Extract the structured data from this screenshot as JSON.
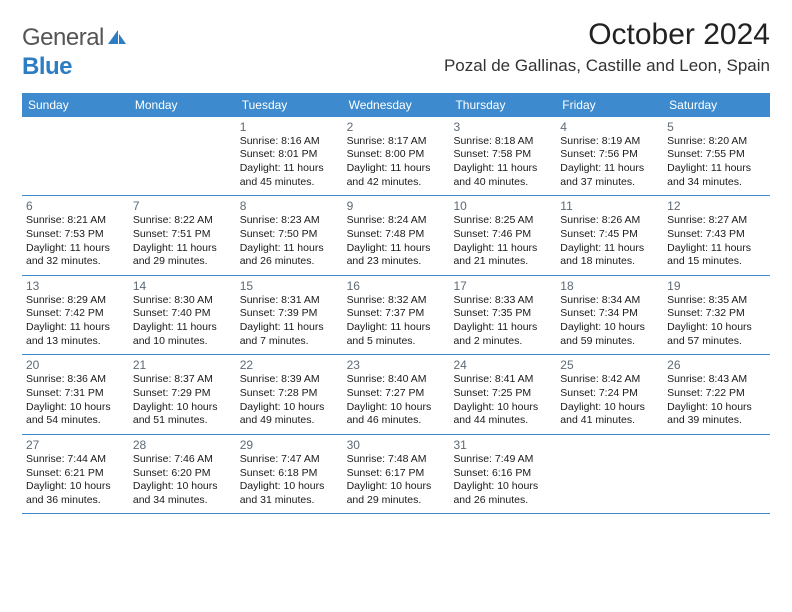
{
  "logo": {
    "part1": "General",
    "part2": "Blue"
  },
  "title": "October 2024",
  "location": "Pozal de Gallinas, Castille and Leon, Spain",
  "colors": {
    "header_bg": "#3d8bce",
    "header_text": "#ffffff",
    "border": "#3d8bce",
    "daynum": "#5d6a75",
    "logo_gray": "#555555",
    "logo_blue": "#2d7dc4"
  },
  "weekdays": [
    "Sunday",
    "Monday",
    "Tuesday",
    "Wednesday",
    "Thursday",
    "Friday",
    "Saturday"
  ],
  "weeks": [
    [
      null,
      null,
      {
        "n": "1",
        "sr": "8:16 AM",
        "ss": "8:01 PM",
        "dl": "11 hours and 45 minutes."
      },
      {
        "n": "2",
        "sr": "8:17 AM",
        "ss": "8:00 PM",
        "dl": "11 hours and 42 minutes."
      },
      {
        "n": "3",
        "sr": "8:18 AM",
        "ss": "7:58 PM",
        "dl": "11 hours and 40 minutes."
      },
      {
        "n": "4",
        "sr": "8:19 AM",
        "ss": "7:56 PM",
        "dl": "11 hours and 37 minutes."
      },
      {
        "n": "5",
        "sr": "8:20 AM",
        "ss": "7:55 PM",
        "dl": "11 hours and 34 minutes."
      }
    ],
    [
      {
        "n": "6",
        "sr": "8:21 AM",
        "ss": "7:53 PM",
        "dl": "11 hours and 32 minutes."
      },
      {
        "n": "7",
        "sr": "8:22 AM",
        "ss": "7:51 PM",
        "dl": "11 hours and 29 minutes."
      },
      {
        "n": "8",
        "sr": "8:23 AM",
        "ss": "7:50 PM",
        "dl": "11 hours and 26 minutes."
      },
      {
        "n": "9",
        "sr": "8:24 AM",
        "ss": "7:48 PM",
        "dl": "11 hours and 23 minutes."
      },
      {
        "n": "10",
        "sr": "8:25 AM",
        "ss": "7:46 PM",
        "dl": "11 hours and 21 minutes."
      },
      {
        "n": "11",
        "sr": "8:26 AM",
        "ss": "7:45 PM",
        "dl": "11 hours and 18 minutes."
      },
      {
        "n": "12",
        "sr": "8:27 AM",
        "ss": "7:43 PM",
        "dl": "11 hours and 15 minutes."
      }
    ],
    [
      {
        "n": "13",
        "sr": "8:29 AM",
        "ss": "7:42 PM",
        "dl": "11 hours and 13 minutes."
      },
      {
        "n": "14",
        "sr": "8:30 AM",
        "ss": "7:40 PM",
        "dl": "11 hours and 10 minutes."
      },
      {
        "n": "15",
        "sr": "8:31 AM",
        "ss": "7:39 PM",
        "dl": "11 hours and 7 minutes."
      },
      {
        "n": "16",
        "sr": "8:32 AM",
        "ss": "7:37 PM",
        "dl": "11 hours and 5 minutes."
      },
      {
        "n": "17",
        "sr": "8:33 AM",
        "ss": "7:35 PM",
        "dl": "11 hours and 2 minutes."
      },
      {
        "n": "18",
        "sr": "8:34 AM",
        "ss": "7:34 PM",
        "dl": "10 hours and 59 minutes."
      },
      {
        "n": "19",
        "sr": "8:35 AM",
        "ss": "7:32 PM",
        "dl": "10 hours and 57 minutes."
      }
    ],
    [
      {
        "n": "20",
        "sr": "8:36 AM",
        "ss": "7:31 PM",
        "dl": "10 hours and 54 minutes."
      },
      {
        "n": "21",
        "sr": "8:37 AM",
        "ss": "7:29 PM",
        "dl": "10 hours and 51 minutes."
      },
      {
        "n": "22",
        "sr": "8:39 AM",
        "ss": "7:28 PM",
        "dl": "10 hours and 49 minutes."
      },
      {
        "n": "23",
        "sr": "8:40 AM",
        "ss": "7:27 PM",
        "dl": "10 hours and 46 minutes."
      },
      {
        "n": "24",
        "sr": "8:41 AM",
        "ss": "7:25 PM",
        "dl": "10 hours and 44 minutes."
      },
      {
        "n": "25",
        "sr": "8:42 AM",
        "ss": "7:24 PM",
        "dl": "10 hours and 41 minutes."
      },
      {
        "n": "26",
        "sr": "8:43 AM",
        "ss": "7:22 PM",
        "dl": "10 hours and 39 minutes."
      }
    ],
    [
      {
        "n": "27",
        "sr": "7:44 AM",
        "ss": "6:21 PM",
        "dl": "10 hours and 36 minutes."
      },
      {
        "n": "28",
        "sr": "7:46 AM",
        "ss": "6:20 PM",
        "dl": "10 hours and 34 minutes."
      },
      {
        "n": "29",
        "sr": "7:47 AM",
        "ss": "6:18 PM",
        "dl": "10 hours and 31 minutes."
      },
      {
        "n": "30",
        "sr": "7:48 AM",
        "ss": "6:17 PM",
        "dl": "10 hours and 29 minutes."
      },
      {
        "n": "31",
        "sr": "7:49 AM",
        "ss": "6:16 PM",
        "dl": "10 hours and 26 minutes."
      },
      null,
      null
    ]
  ],
  "labels": {
    "sunrise": "Sunrise: ",
    "sunset": "Sunset: ",
    "daylight": "Daylight: "
  }
}
